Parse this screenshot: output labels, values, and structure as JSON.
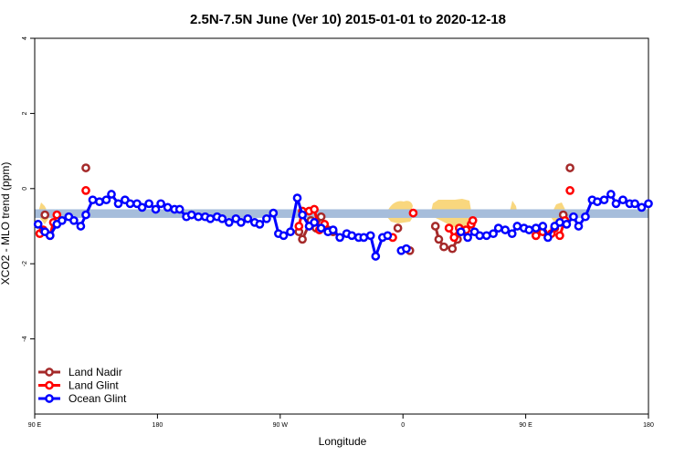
{
  "chart_data": {
    "type": "line",
    "title": "2.5N-7.5N June (Ver 10)   2015-01-01 to 2020-12-18",
    "xlabel": "Longitude",
    "ylabel": "XCO2 - MLO trend (ppm)",
    "xlim": [
      90,
      450
    ],
    "ylim": [
      -6,
      4
    ],
    "x_ticks": [
      {
        "value": 90,
        "label": "90 E"
      },
      {
        "value": 162,
        "label": "180"
      },
      {
        "value": 234,
        "label": "90 W"
      },
      {
        "value": 306,
        "label": "0"
      },
      {
        "value": 378,
        "label": "90 E"
      },
      {
        "value": 450,
        "label": "180"
      }
    ],
    "y_ticks": [
      {
        "value": 4,
        "label": "4"
      },
      {
        "value": 2,
        "label": "2"
      },
      {
        "value": 0,
        "label": "0"
      },
      {
        "value": -2,
        "label": "-2"
      },
      {
        "value": -4,
        "label": "-4"
      }
    ],
    "band": {
      "ymin": -0.78,
      "ymax": -0.55,
      "color": "#a6bddb"
    },
    "land_color": "#f9d77e",
    "legend_position": "bottom-left",
    "series": [
      {
        "name": "Land Nadir",
        "color": "#a52a2a",
        "segments": [
          [
            [
              96,
              -0.7
            ]
          ],
          [
            [
              120,
              0.55
            ]
          ],
          [
            [
              245,
              -1.15
            ],
            [
              247,
              -1.35
            ],
            [
              252,
              -0.85
            ],
            [
              255,
              -1.05
            ],
            [
              258,
              -0.75
            ],
            [
              262,
              -1.1
            ],
            [
              265,
              -1.15
            ]
          ],
          [
            [
              303,
              -1.05
            ]
          ],
          [
            [
              310,
              -1.65
            ]
          ],
          [
            [
              325,
              -1.0
            ],
            [
              327,
              -1.35
            ],
            [
              330,
              -1.55
            ],
            [
              335,
              -1.6
            ],
            [
              338,
              -1.35
            ]
          ],
          [
            [
              384,
              -1.25
            ]
          ],
          [
            [
              395,
              -1.05
            ]
          ],
          [
            [
              400,
              -0.7
            ]
          ],
          [
            [
              404,
              0.55
            ]
          ]
        ]
      },
      {
        "name": "Land Glint",
        "color": "#ff0000",
        "segments": [
          [
            [
              93,
              -1.2
            ],
            [
              95,
              -1.1
            ]
          ],
          [
            [
              99,
              -1.25
            ],
            [
              101,
              -0.9
            ],
            [
              103,
              -0.7
            ]
          ],
          [
            [
              120,
              -0.05
            ]
          ],
          [
            [
              245,
              -1.0
            ],
            [
              247,
              -0.6
            ],
            [
              251,
              -0.6
            ],
            [
              254,
              -0.55
            ],
            [
              257,
              -1.1
            ],
            [
              260,
              -0.95
            ]
          ],
          [
            [
              300,
              -1.3
            ]
          ],
          [
            [
              312,
              -0.65
            ]
          ],
          [
            [
              333,
              -1.05
            ],
            [
              336,
              -1.3
            ],
            [
              339,
              -1.05
            ]
          ],
          [
            [
              343,
              -1.1
            ],
            [
              346,
              -0.95
            ],
            [
              347,
              -0.85
            ]
          ],
          [
            [
              384,
              -1.25
            ]
          ],
          [
            [
              388,
              -1.15
            ]
          ],
          [
            [
              393,
              -1.2
            ],
            [
              395,
              -1.05
            ]
          ],
          [
            [
              398,
              -1.25
            ],
            [
              401,
              -0.85
            ]
          ],
          [
            [
              404,
              -0.05
            ]
          ]
        ]
      },
      {
        "name": "Ocean Glint",
        "color": "#0000ff",
        "segments": [
          [
            [
              92,
              -0.95
            ],
            [
              96,
              -1.15
            ],
            [
              99,
              -1.25
            ],
            [
              103,
              -0.95
            ],
            [
              106,
              -0.85
            ],
            [
              110,
              -0.75
            ],
            [
              113,
              -0.85
            ],
            [
              117,
              -1.0
            ],
            [
              120,
              -0.7
            ],
            [
              124,
              -0.3
            ],
            [
              128,
              -0.35
            ],
            [
              132,
              -0.3
            ],
            [
              135,
              -0.15
            ],
            [
              139,
              -0.4
            ],
            [
              143,
              -0.3
            ],
            [
              146,
              -0.4
            ],
            [
              150,
              -0.4
            ],
            [
              153,
              -0.5
            ],
            [
              157,
              -0.4
            ],
            [
              161,
              -0.55
            ],
            [
              164,
              -0.4
            ],
            [
              168,
              -0.5
            ],
            [
              172,
              -0.55
            ],
            [
              175,
              -0.55
            ],
            [
              179,
              -0.75
            ],
            [
              182,
              -0.7
            ],
            [
              186,
              -0.75
            ],
            [
              190,
              -0.75
            ],
            [
              193,
              -0.8
            ],
            [
              197,
              -0.75
            ],
            [
              200,
              -0.8
            ],
            [
              204,
              -0.9
            ],
            [
              208,
              -0.8
            ],
            [
              211,
              -0.9
            ],
            [
              215,
              -0.8
            ],
            [
              219,
              -0.9
            ],
            [
              222,
              -0.95
            ],
            [
              226,
              -0.8
            ],
            [
              230,
              -0.65
            ],
            [
              233,
              -1.2
            ],
            [
              236,
              -1.25
            ],
            [
              240,
              -1.15
            ],
            [
              244,
              -0.25
            ],
            [
              247,
              -0.7
            ],
            [
              251,
              -1.0
            ],
            [
              254,
              -0.9
            ],
            [
              258,
              -1.05
            ],
            [
              262,
              -1.15
            ],
            [
              265,
              -1.1
            ],
            [
              269,
              -1.3
            ],
            [
              273,
              -1.2
            ],
            [
              276,
              -1.25
            ],
            [
              280,
              -1.3
            ],
            [
              283,
              -1.3
            ],
            [
              287,
              -1.25
            ],
            [
              290,
              -1.8
            ],
            [
              294,
              -1.3
            ],
            [
              297,
              -1.25
            ]
          ],
          [
            [
              305,
              -1.65
            ]
          ],
          [
            [
              308,
              -1.6
            ]
          ],
          [
            [
              340,
              -1.15
            ],
            [
              344,
              -1.3
            ],
            [
              348,
              -1.15
            ],
            [
              351,
              -1.25
            ],
            [
              355,
              -1.25
            ],
            [
              359,
              -1.2
            ],
            [
              362,
              -1.05
            ],
            [
              366,
              -1.1
            ],
            [
              370,
              -1.2
            ],
            [
              373,
              -1.0
            ],
            [
              377,
              -1.05
            ],
            [
              380,
              -1.1
            ],
            [
              384,
              -1.05
            ],
            [
              388,
              -1.0
            ],
            [
              391,
              -1.3
            ],
            [
              395,
              -1.0
            ],
            [
              398,
              -0.9
            ],
            [
              402,
              -0.95
            ],
            [
              406,
              -0.75
            ],
            [
              409,
              -1.0
            ],
            [
              413,
              -0.75
            ],
            [
              417,
              -0.3
            ],
            [
              420,
              -0.35
            ],
            [
              424,
              -0.3
            ],
            [
              428,
              -0.15
            ],
            [
              431,
              -0.4
            ],
            [
              435,
              -0.3
            ],
            [
              439,
              -0.4
            ],
            [
              442,
              -0.4
            ],
            [
              446,
              -0.5
            ],
            [
              450,
              -0.4
            ]
          ]
        ]
      }
    ]
  }
}
